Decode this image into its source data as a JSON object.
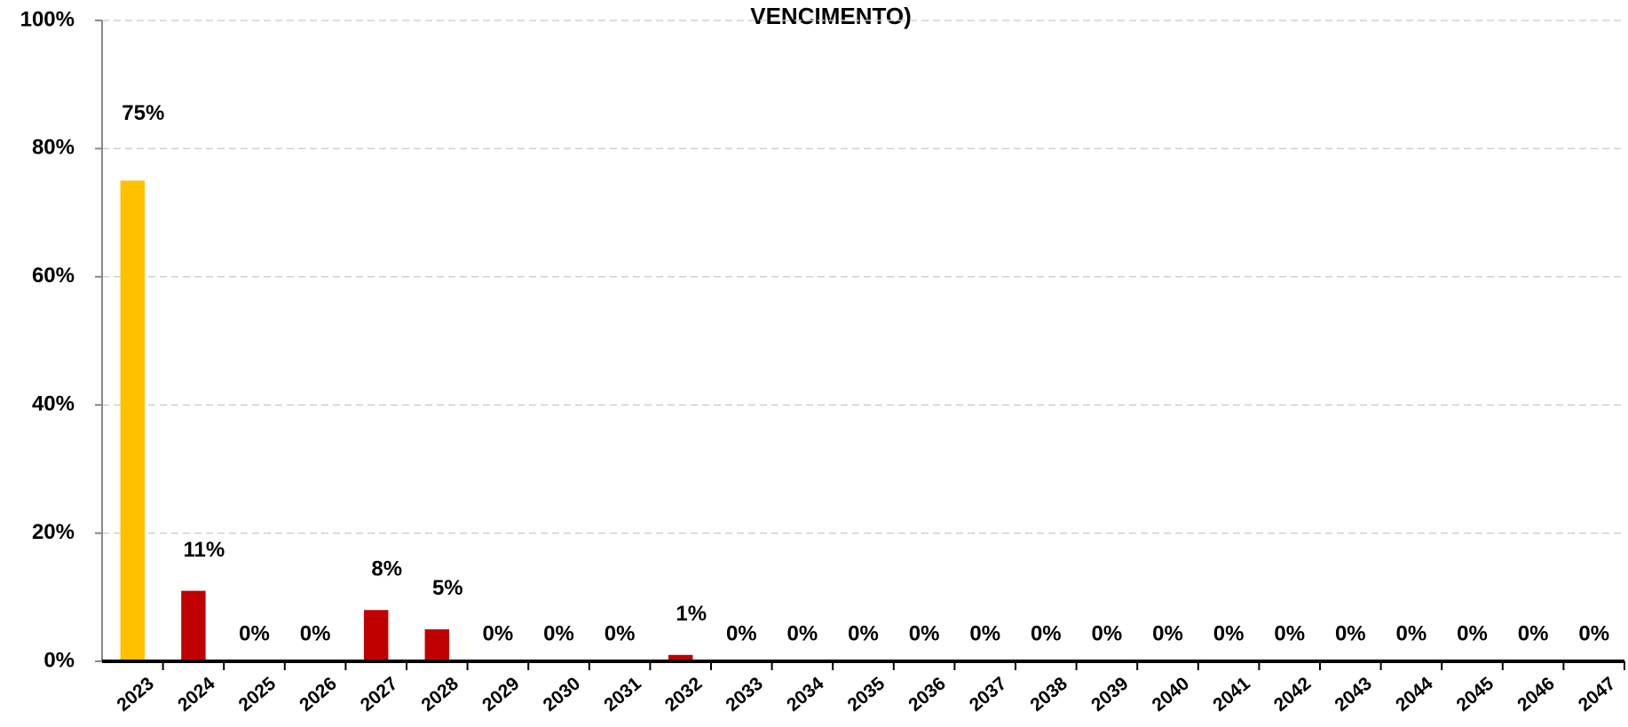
{
  "chart_data": {
    "type": "bar",
    "title": "VENCIMENTO)",
    "categories": [
      "2023",
      "2024",
      "2025",
      "2026",
      "2027",
      "2028",
      "2029",
      "2030",
      "2031",
      "2032",
      "2033",
      "2034",
      "2035",
      "2036",
      "2037",
      "2038",
      "2039",
      "2040",
      "2041",
      "2042",
      "2043",
      "2044",
      "2045",
      "2046",
      "2047"
    ],
    "values": [
      75,
      11,
      0,
      0,
      8,
      5,
      0,
      0,
      0,
      1,
      0,
      0,
      0,
      0,
      0,
      0,
      0,
      0,
      0,
      0,
      0,
      0,
      0,
      0,
      0
    ],
    "value_labels": [
      "75%",
      "11%",
      "0%",
      "0%",
      "8%",
      "5%",
      "0%",
      "0%",
      "0%",
      "1%",
      "0%",
      "0%",
      "0%",
      "0%",
      "0%",
      "0%",
      "0%",
      "0%",
      "0%",
      "0%",
      "0%",
      "0%",
      "0%",
      "0%",
      "0%"
    ],
    "colors": [
      "#ffc000",
      "#c00000",
      "#c00000",
      "#c00000",
      "#c00000",
      "#c00000",
      "#c00000",
      "#c00000",
      "#c00000",
      "#c00000",
      "#c00000",
      "#c00000",
      "#c00000",
      "#c00000",
      "#c00000",
      "#c00000",
      "#c00000",
      "#c00000",
      "#c00000",
      "#c00000",
      "#c00000",
      "#c00000",
      "#c00000",
      "#c00000",
      "#c00000"
    ],
    "ylim": [
      0,
      100
    ],
    "yticks": [
      {
        "value": 0,
        "label": "0%"
      },
      {
        "value": 20,
        "label": "20%"
      },
      {
        "value": 40,
        "label": "40%"
      },
      {
        "value": 60,
        "label": "60%"
      },
      {
        "value": 80,
        "label": "80%"
      },
      {
        "value": 100,
        "label": "100%"
      }
    ],
    "grid": true
  }
}
